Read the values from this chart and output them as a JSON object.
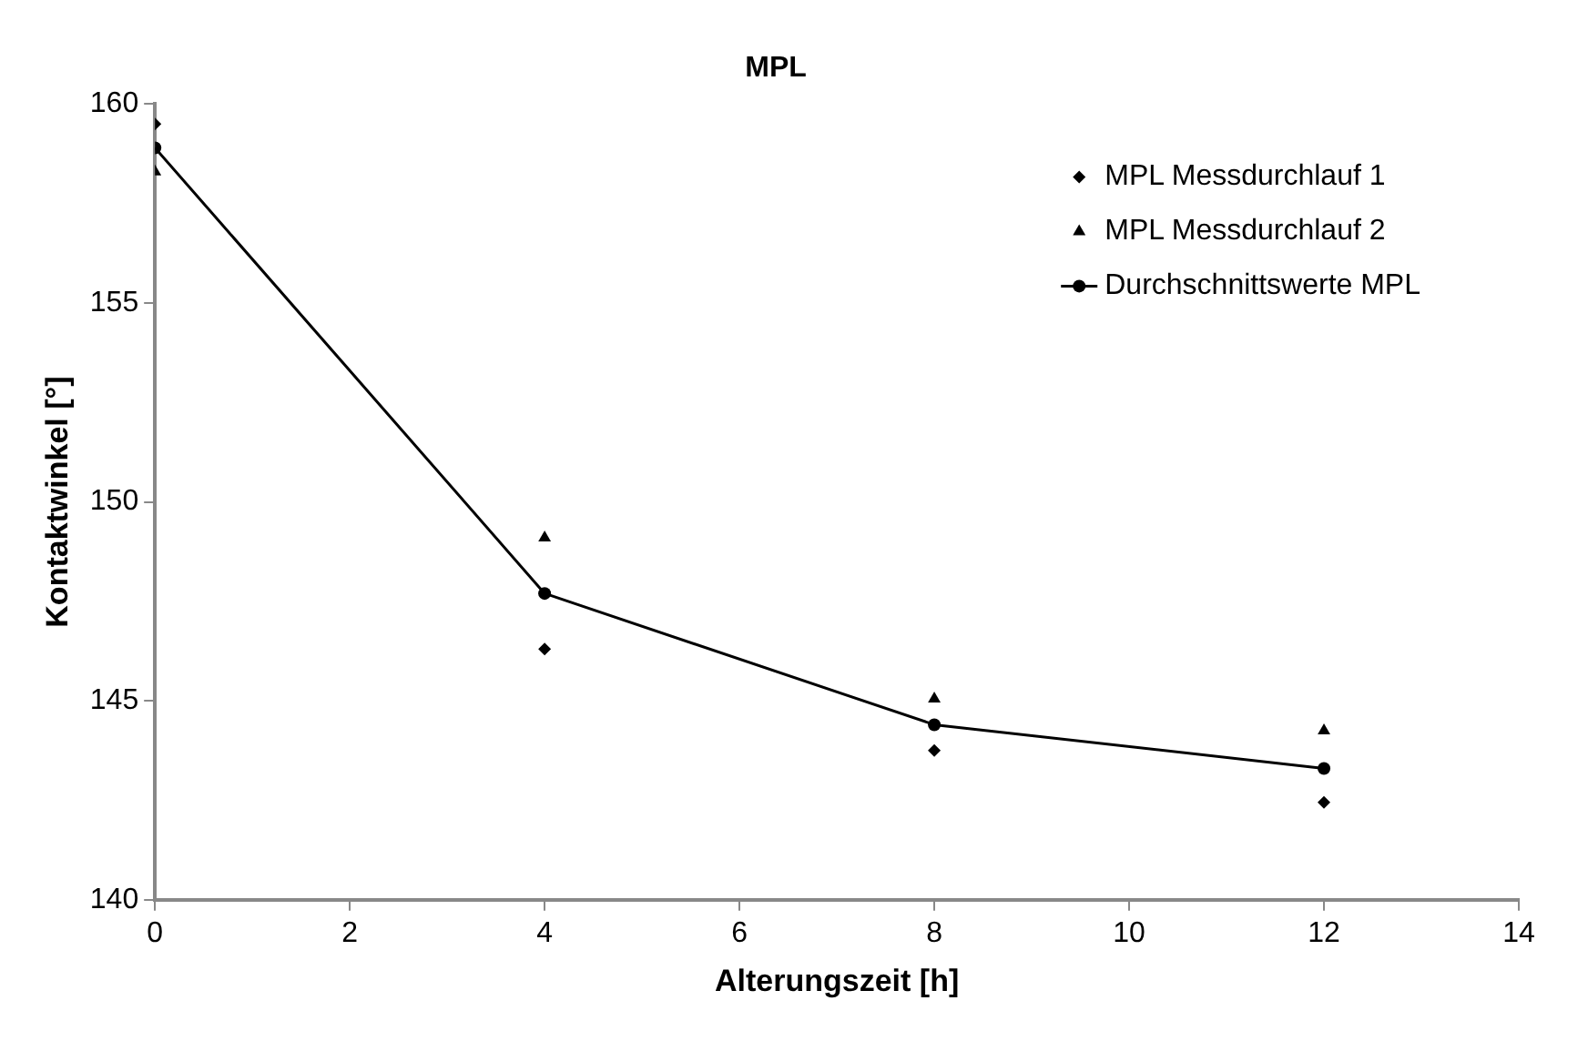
{
  "chart_data": {
    "type": "scatter",
    "title": "MPL",
    "xlabel": "Alterungszeit [h]",
    "ylabel": "Kontaktwinkel [°]",
    "series": [
      {
        "name": "MPL Messdurchlauf 1",
        "marker": "diamond",
        "color": "#000000",
        "x": [
          0,
          4,
          8,
          12
        ],
        "values": [
          159.5,
          146.3,
          143.75,
          142.45
        ]
      },
      {
        "name": "MPL Messdurchlauf 2",
        "marker": "triangle",
        "color": "#000000",
        "x": [
          0,
          4,
          8,
          12
        ],
        "values": [
          158.3,
          149.1,
          145.05,
          144.25
        ]
      },
      {
        "name": "Durchschnittswerte MPL",
        "type": "line",
        "marker": "circle",
        "line_style": "solid",
        "color": "#000000",
        "x": [
          0,
          4,
          8,
          12
        ],
        "values": [
          158.9,
          147.7,
          144.4,
          143.3
        ]
      }
    ],
    "xlim": [
      0,
      14
    ],
    "xticks": [
      0,
      2,
      4,
      6,
      8,
      10,
      12,
      14
    ],
    "ylim": [
      140,
      160
    ],
    "yticks": [
      140,
      145,
      150,
      155,
      160
    ],
    "grid": false,
    "legend": "top right"
  }
}
